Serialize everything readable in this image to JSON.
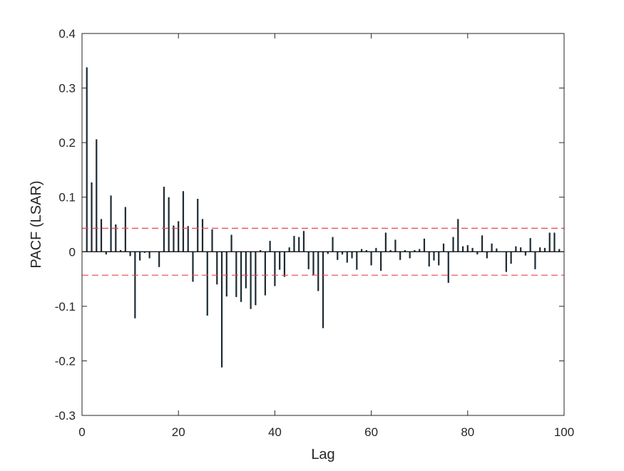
{
  "chart_data": {
    "type": "bar",
    "title": "",
    "xlabel": "Lag",
    "ylabel": "PACF (LSAR)",
    "xlim": [
      0,
      100
    ],
    "ylim": [
      -0.3,
      0.4
    ],
    "xticks": [
      0,
      20,
      40,
      60,
      80,
      100
    ],
    "yticks": [
      -0.3,
      -0.2,
      -0.1,
      0,
      0.1,
      0.2,
      0.3,
      0.4
    ],
    "xtick_labels": [
      "0",
      "20",
      "40",
      "60",
      "80",
      "100"
    ],
    "ytick_labels": [
      "-0.3",
      "-0.2",
      "-0.1",
      "0",
      "0.1",
      "0.2",
      "0.3",
      "0.4"
    ],
    "grid": false,
    "confidence_bounds": [
      -0.043,
      0.043
    ],
    "colors": {
      "stems": "#1c2a33",
      "bounds": "#e8474a",
      "axes": "#262626",
      "zero_line": "#000000"
    },
    "lags": [
      1,
      2,
      3,
      4,
      5,
      6,
      7,
      8,
      9,
      10,
      11,
      12,
      13,
      14,
      15,
      16,
      17,
      18,
      19,
      20,
      21,
      22,
      23,
      24,
      25,
      26,
      27,
      28,
      29,
      30,
      31,
      32,
      33,
      34,
      35,
      36,
      37,
      38,
      39,
      40,
      41,
      42,
      43,
      44,
      45,
      46,
      47,
      48,
      49,
      50,
      51,
      52,
      53,
      54,
      55,
      56,
      57,
      58,
      59,
      60,
      61,
      62,
      63,
      64,
      65,
      66,
      67,
      68,
      69,
      70,
      71,
      72,
      73,
      74,
      75,
      76,
      77,
      78,
      79,
      80,
      81,
      82,
      83,
      84,
      85,
      86,
      87,
      88,
      89,
      90,
      91,
      92,
      93,
      94,
      95,
      96,
      97,
      98,
      99
    ],
    "values": [
      0.338,
      0.127,
      0.206,
      0.06,
      -0.005,
      0.103,
      0.05,
      0.003,
      0.082,
      -0.008,
      -0.122,
      -0.016,
      -0.002,
      -0.012,
      0.0,
      -0.028,
      0.119,
      0.1,
      0.048,
      0.056,
      0.111,
      0.047,
      -0.055,
      0.097,
      0.06,
      -0.117,
      0.041,
      -0.06,
      -0.212,
      -0.082,
      0.031,
      -0.083,
      -0.092,
      -0.067,
      -0.105,
      -0.098,
      0.003,
      -0.08,
      0.02,
      -0.063,
      -0.033,
      -0.046,
      0.008,
      0.029,
      0.027,
      0.038,
      -0.032,
      -0.043,
      -0.072,
      -0.14,
      -0.004,
      0.027,
      -0.015,
      -0.005,
      -0.02,
      -0.012,
      -0.033,
      0.005,
      0.003,
      -0.025,
      0.007,
      -0.035,
      0.035,
      0.003,
      0.022,
      -0.015,
      0.003,
      -0.012,
      0.003,
      0.005,
      0.024,
      -0.027,
      -0.016,
      -0.025,
      0.015,
      -0.057,
      0.027,
      0.06,
      0.01,
      0.012,
      0.007,
      -0.005,
      0.03,
      -0.012,
      0.015,
      0.006,
      0.0,
      -0.037,
      -0.022,
      0.01,
      0.008,
      -0.007,
      0.025,
      -0.032,
      0.008,
      0.007,
      0.035,
      0.035,
      0.005
    ]
  }
}
